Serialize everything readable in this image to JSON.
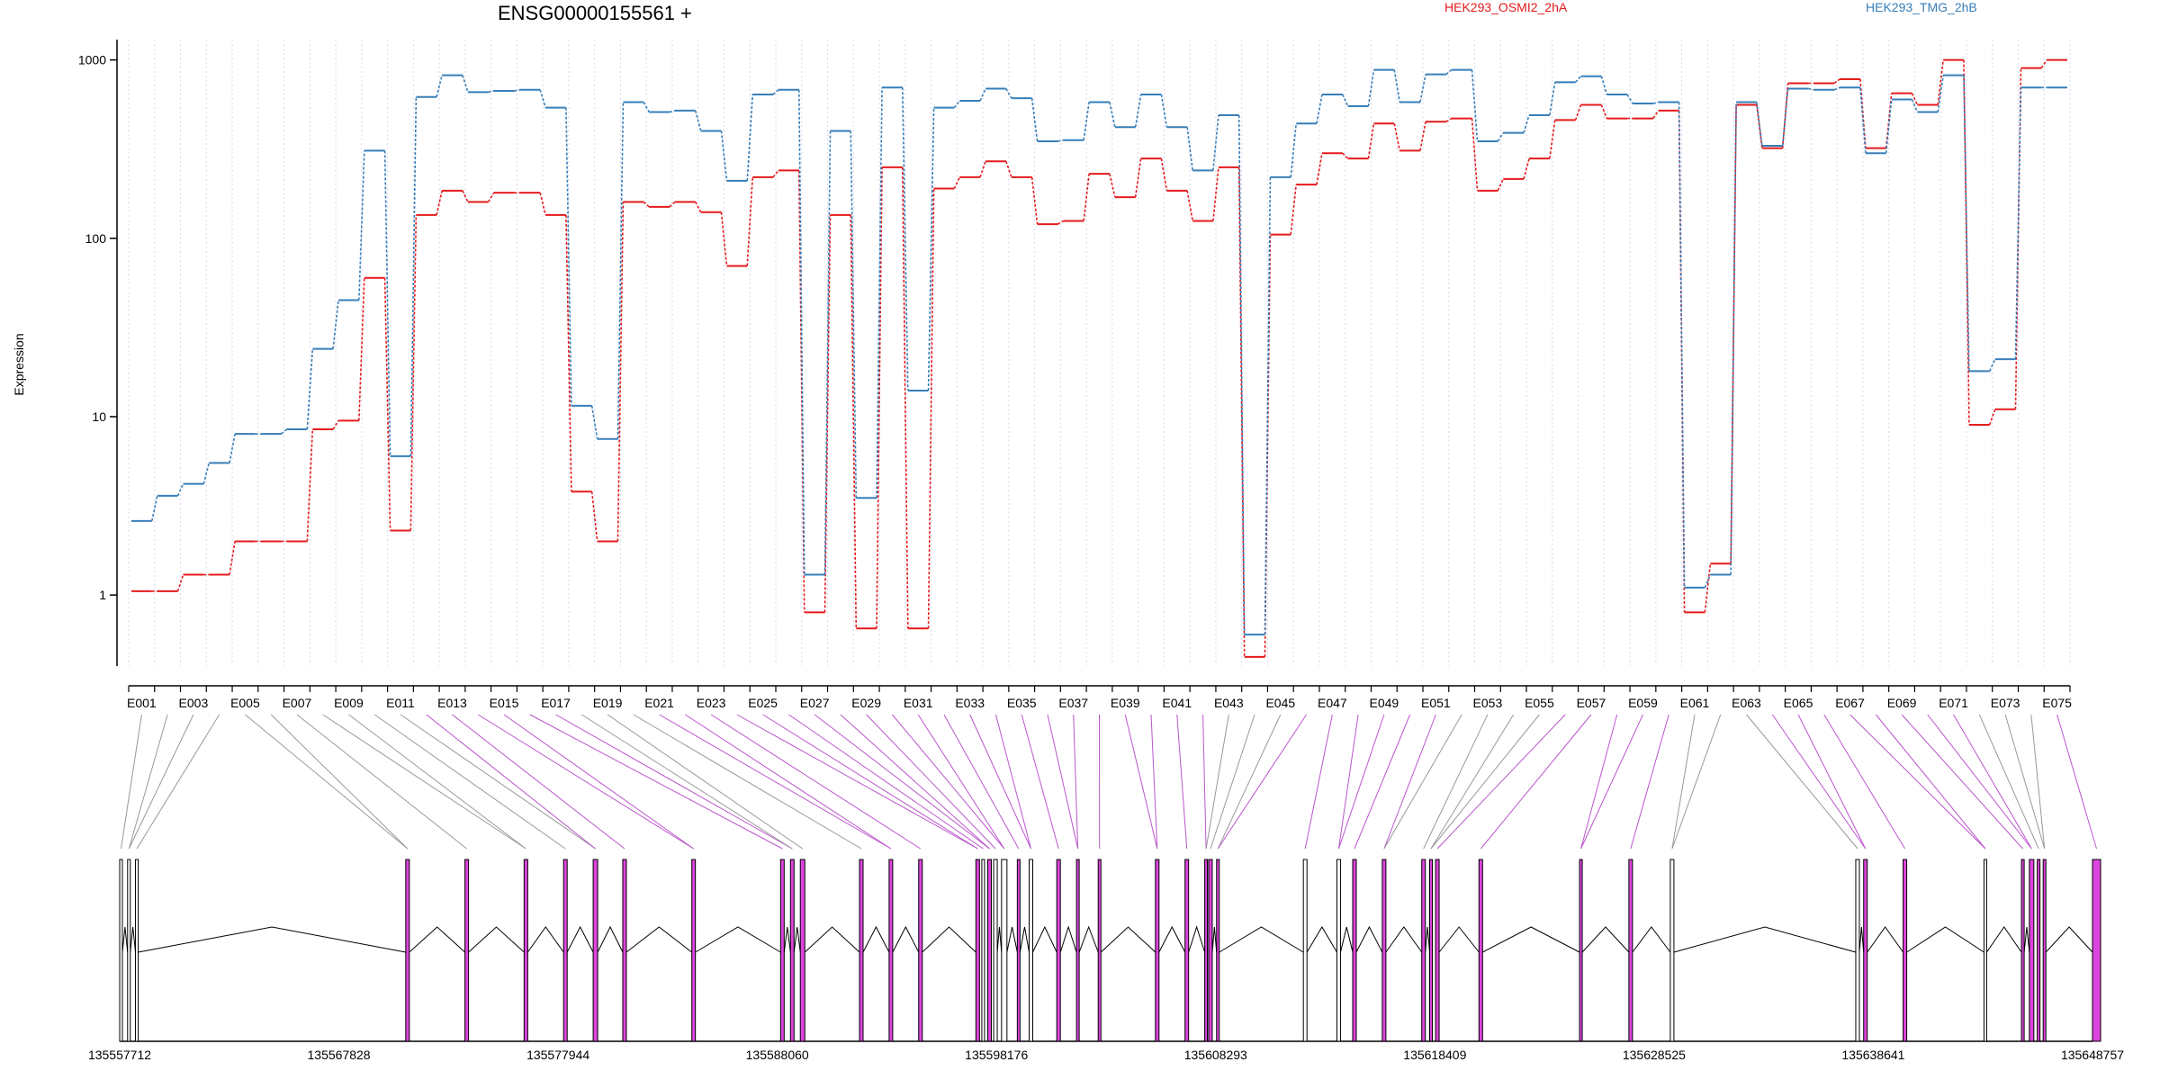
{
  "chart_data": {
    "type": "line",
    "title": "ENSG00000155561 +",
    "ylabel": "Expression",
    "yscale": "log",
    "ylim": [
      0.4,
      1300
    ],
    "yticks": [
      "1000",
      "100",
      "10",
      "1"
    ],
    "colors": {
      "HEK293_OSMI2_2hA": "#e41a1c",
      "HEK293_TMG_2hB": "#377eb8"
    },
    "exon_label_x": [
      "E001",
      "E003",
      "E005",
      "E007",
      "E009",
      "E011",
      "E013",
      "E015",
      "E017",
      "E019",
      "E021",
      "E023",
      "E025",
      "E027",
      "E029",
      "E031",
      "E033",
      "E035",
      "E037",
      "E039",
      "E041",
      "E043",
      "E045",
      "E047",
      "E049",
      "E051",
      "E053",
      "E055",
      "E057",
      "E059",
      "E061",
      "E063",
      "E065",
      "E067",
      "E069",
      "E071",
      "E073",
      "E075"
    ],
    "x": [
      "E001",
      "E002",
      "E003",
      "E004",
      "E005",
      "E006",
      "E007",
      "E008",
      "E009",
      "E010",
      "E011",
      "E012",
      "E013",
      "E014",
      "E015",
      "E016",
      "E017",
      "E018",
      "E019",
      "E020",
      "E021",
      "E022",
      "E023",
      "E024",
      "E025",
      "E026",
      "E027",
      "E028",
      "E029",
      "E030",
      "E031",
      "E032",
      "E033",
      "E034",
      "E035",
      "E036",
      "E037",
      "E038",
      "E039",
      "E040",
      "E041",
      "E042",
      "E043",
      "E044",
      "E045",
      "E046",
      "E047",
      "E048",
      "E049",
      "E050",
      "E051",
      "E052",
      "E053",
      "E054",
      "E055",
      "E056",
      "E057",
      "E058",
      "E059",
      "E060",
      "E061",
      "E062",
      "E063",
      "E064",
      "E065",
      "E066",
      "E067",
      "E068",
      "E069",
      "E070",
      "E071",
      "E072",
      "E073",
      "E074",
      "E075"
    ],
    "series": [
      {
        "name": "HEK293_OSMI2_2hA",
        "color": "#e41a1c",
        "values": [
          1.05,
          1.05,
          1.3,
          1.3,
          2.0,
          2.0,
          2.0,
          8.5,
          9.5,
          60,
          2.3,
          135,
          185,
          160,
          180,
          180,
          135,
          3.8,
          2.0,
          160,
          150,
          160,
          140,
          70,
          220,
          240,
          0.8,
          135,
          0.65,
          250,
          0.65,
          190,
          220,
          270,
          220,
          120,
          125,
          230,
          170,
          280,
          185,
          125,
          250,
          0.45,
          105,
          200,
          300,
          280,
          440,
          310,
          450,
          470,
          185,
          215,
          280,
          460,
          560,
          470,
          470,
          520,
          0.8,
          1.5,
          560,
          320,
          740,
          740,
          780,
          320,
          650,
          560,
          1000,
          9,
          11,
          900,
          1000
        ]
      },
      {
        "name": "HEK293_TMG_2hB",
        "color": "#377eb8",
        "values": [
          2.6,
          3.6,
          4.2,
          5.5,
          8.0,
          8.0,
          8.5,
          24,
          45,
          310,
          6.0,
          620,
          820,
          660,
          670,
          680,
          540,
          11.5,
          7.5,
          580,
          510,
          520,
          400,
          210,
          640,
          680,
          1.3,
          400,
          3.5,
          700,
          14,
          540,
          590,
          690,
          610,
          350,
          355,
          580,
          420,
          640,
          420,
          240,
          490,
          0.6,
          220,
          440,
          640,
          550,
          880,
          580,
          830,
          880,
          350,
          390,
          490,
          750,
          810,
          640,
          570,
          580,
          1.1,
          1.3,
          580,
          330,
          690,
          680,
          700,
          300,
          600,
          510,
          820,
          18,
          21,
          700,
          700
        ]
      }
    ],
    "genomic_axis": {
      "labels": [
        "135557712",
        "135567828",
        "135577944",
        "135588060",
        "135598176",
        "135608293",
        "135618409",
        "135628525",
        "135638641",
        "135648757"
      ]
    },
    "legend": [
      "HEK293_OSMI2_2hA",
      "HEK293_TMG_2hB"
    ],
    "legend_placement": "top-right",
    "grid": "vertical dotted lines at each exon"
  }
}
